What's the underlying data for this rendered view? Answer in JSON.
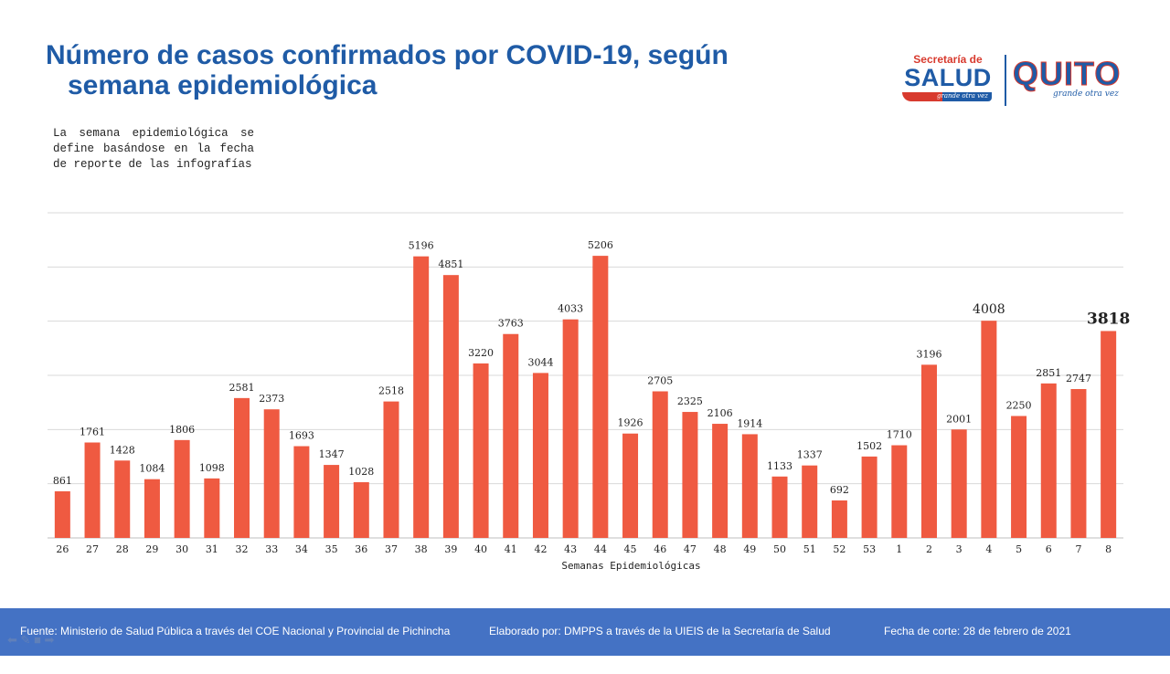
{
  "title_line1": "Número de casos confirmados por COVID-19, según",
  "title_line2": "semana epidemiológica",
  "note": "La semana epidemiológica se define basándose en la fecha de reporte de las infografías",
  "logo_salud": {
    "top": "Secretaría de",
    "main": "SALUD",
    "tagline": "grande otra vez"
  },
  "logo_quito": {
    "main": "QUITO",
    "tagline": "grande otra vez"
  },
  "colors": {
    "bar": "#ef5a41",
    "title": "#1f5ba6",
    "footer": "#4472c4"
  },
  "chart_data": {
    "type": "bar",
    "xlabel": "Semanas Epidemiológicas",
    "ylabel": "",
    "ylim": [
      0,
      6000
    ],
    "grid": true,
    "categories": [
      "26",
      "27",
      "28",
      "29",
      "30",
      "31",
      "32",
      "33",
      "34",
      "35",
      "36",
      "37",
      "38",
      "39",
      "40",
      "41",
      "42",
      "43",
      "44",
      "45",
      "46",
      "47",
      "48",
      "49",
      "50",
      "51",
      "52",
      "53",
      "1",
      "2",
      "3",
      "4",
      "5",
      "6",
      "7",
      "8"
    ],
    "values": [
      861,
      1761,
      1428,
      1084,
      1806,
      1098,
      2581,
      2373,
      1693,
      1347,
      1028,
      2518,
      5196,
      4851,
      3220,
      3763,
      3044,
      4033,
      5206,
      1926,
      2705,
      2325,
      2106,
      1914,
      1133,
      1337,
      692,
      1502,
      1710,
      3196,
      2001,
      4008,
      2250,
      2851,
      2747,
      3818
    ],
    "highlighted_labels": [
      "4008",
      "3818"
    ]
  },
  "footer": {
    "source": "Fuente: Ministerio de Salud Pública a través del COE Nacional y Provincial de Pichincha",
    "prepared": "Elaborado por: DMPPS a través de la UIEIS de la Secretaría de Salud",
    "cutoff": "Fecha de corte: 28 de febrero de 2021"
  },
  "footer_icons": [
    "arrow-left-icon",
    "pen-icon",
    "screen-icon",
    "arrow-right-icon"
  ]
}
